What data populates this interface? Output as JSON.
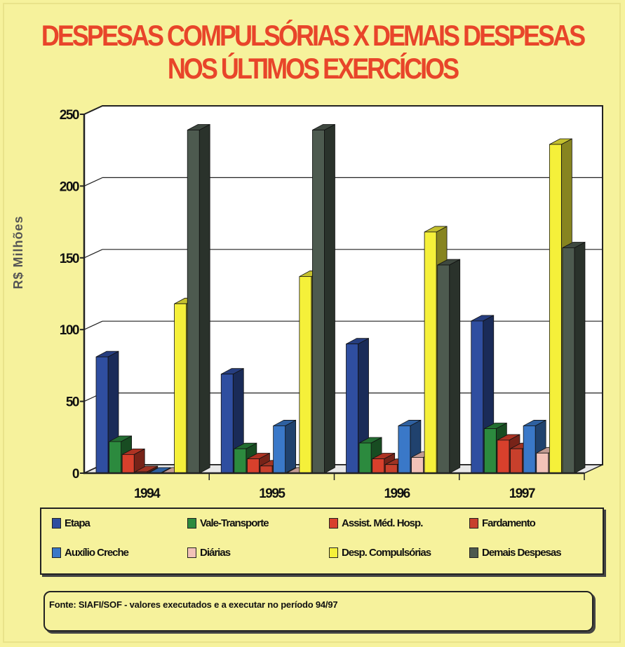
{
  "title_line1": "DESPESAS COMPULSÓRIAS X DEMAIS DESPESAS",
  "title_line2": "NOS ÚLTIMOS EXERCÍCIOS",
  "source": "Fonte: SIAFI/SOF - valores executados  e a executar no período 94/97",
  "colors": {
    "background": "#f6f29c",
    "title": "#e8452a",
    "plot_area": "#ffffff"
  },
  "chart_data": {
    "type": "bar",
    "ylabel": "R$  Milhões",
    "xlabel": "",
    "ylim": [
      0,
      250
    ],
    "yticks": [
      "0",
      "50",
      "100",
      "150",
      "200",
      "250"
    ],
    "categories": [
      "1994",
      "1995",
      "1996",
      "1997"
    ],
    "grid": true,
    "legend_position": "bottom",
    "series": [
      {
        "name": "Etapa",
        "color": "#2f4ea0",
        "values": [
          81,
          69,
          90,
          106
        ]
      },
      {
        "name": "Vale-Transporte",
        "color": "#2c8a3e",
        "values": [
          22,
          17,
          21,
          31
        ]
      },
      {
        "name": "Assist. Méd. Hosp.",
        "color": "#d8402c",
        "values": [
          13,
          10,
          10,
          23
        ]
      },
      {
        "name": "Fardamento",
        "color": "#c8402c",
        "values": [
          1,
          5,
          6,
          17
        ]
      },
      {
        "name": "Auxílio Creche",
        "color": "#3a78c8",
        "values": [
          0,
          33,
          33,
          33
        ]
      },
      {
        "name": "Diárias",
        "color": "#f2c2b8",
        "values": [
          0,
          0,
          11,
          14
        ]
      },
      {
        "name": "Desp. Compulsórias",
        "color": "#f5f03a",
        "values": [
          118,
          137,
          168,
          229
        ]
      },
      {
        "name": "Demais Despesas",
        "color": "#4d5a4f",
        "values": [
          239,
          239,
          145,
          157
        ]
      }
    ]
  }
}
